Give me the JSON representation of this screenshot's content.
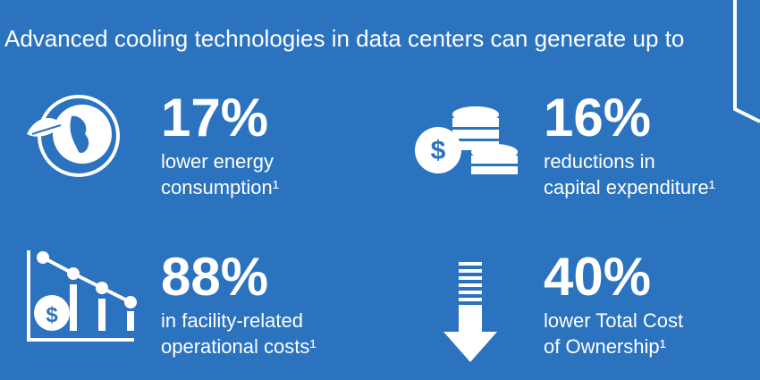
{
  "title": "Advanced cooling technologies in data centers can generate up to",
  "stats": [
    {
      "value": "17%",
      "lines": [
        "lower energy",
        "consumption¹"
      ]
    },
    {
      "value": "16%",
      "lines": [
        "reductions in",
        "capital expenditure¹"
      ]
    },
    {
      "value": "88%",
      "lines": [
        "in facility-related",
        "operational costs¹"
      ]
    },
    {
      "value": "40%",
      "lines": [
        "lower Total Cost",
        "of Ownership¹"
      ]
    }
  ]
}
